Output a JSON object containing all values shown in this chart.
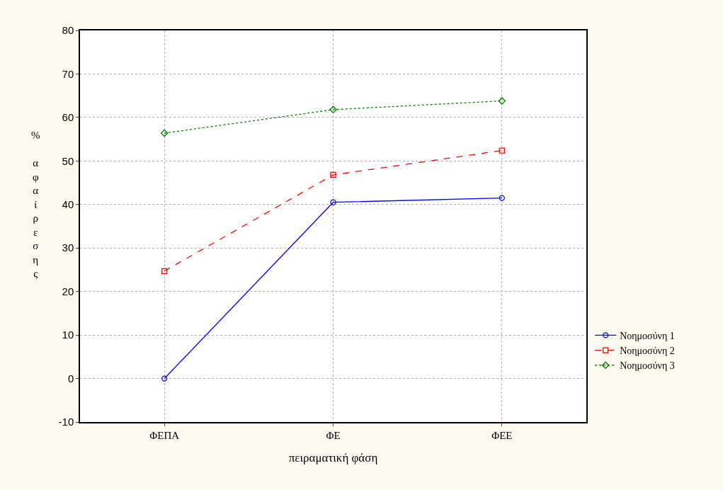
{
  "chart_data": {
    "type": "line",
    "xlabel": "πειραματική φάση",
    "ylabel": "% αφαίρεσης",
    "categories": [
      "ΦΕΠΑ",
      "ΦΕ",
      "ΦΕΕ"
    ],
    "series": [
      {
        "name": "Νοημοσύνη 1",
        "color": "#0000ff",
        "values": [
          0,
          40.5,
          41.5
        ],
        "marker": "circle",
        "line_style": "solid"
      },
      {
        "name": "Νοημοσύνη 2",
        "color": "#ff0000",
        "values": [
          24.7,
          46.8,
          52.4
        ],
        "marker": "square",
        "line_style": "dashed"
      },
      {
        "name": "Νοημοσύνη 3",
        "color": "#008000",
        "values": [
          56.4,
          61.8,
          63.8
        ],
        "marker": "diamond",
        "line_style": "dotted"
      }
    ],
    "ylim": [
      -10,
      80
    ],
    "yticks": [
      -10,
      0,
      10,
      20,
      30,
      40,
      50,
      60,
      70,
      80
    ],
    "grid": true,
    "legend": "bottom right"
  }
}
